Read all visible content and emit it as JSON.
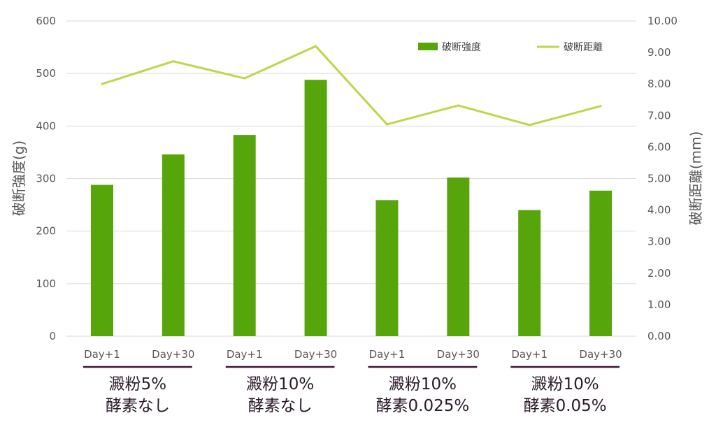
{
  "chart_data": {
    "type": "bar",
    "title": "",
    "categories": [
      "Day+1",
      "Day+30",
      "Day+1",
      "Day+30",
      "Day+1",
      "Day+30",
      "Day+1",
      "Day+30"
    ],
    "groups": [
      {
        "line1": "澱粉5%",
        "line2": "酵素なし"
      },
      {
        "line1": "澱粉10%",
        "line2": "酵素なし"
      },
      {
        "line1": "澱粉10%",
        "line2": "酵素0.025%"
      },
      {
        "line1": "澱粉10%",
        "line2": "酵素0.05%"
      }
    ],
    "series": [
      {
        "name": "破断強度",
        "type": "bar",
        "axis": "left",
        "color": "#56a60b",
        "values": [
          288,
          346,
          383,
          488,
          259,
          302,
          240,
          277
        ]
      },
      {
        "name": "破断距離",
        "type": "line",
        "axis": "right",
        "color": "#c2d44a",
        "values": [
          8.0,
          8.72,
          8.18,
          9.2,
          6.72,
          7.32,
          6.7,
          7.3
        ]
      }
    ],
    "ylabel": "破断強度(g)",
    "ylim": [
      0,
      600
    ],
    "yticks": [
      "0",
      "100",
      "200",
      "300",
      "400",
      "500",
      "600"
    ],
    "y2label": "破断距離(mm)",
    "y2lim": [
      0,
      10
    ],
    "y2ticks": [
      "0.00",
      "1.00",
      "2.00",
      "3.00",
      "4.00",
      "5.00",
      "6.00",
      "7.00",
      "8.00",
      "9.00",
      "10.00"
    ],
    "grid": true,
    "legend_position": "top-right",
    "group_line_color": "#3d1436"
  }
}
